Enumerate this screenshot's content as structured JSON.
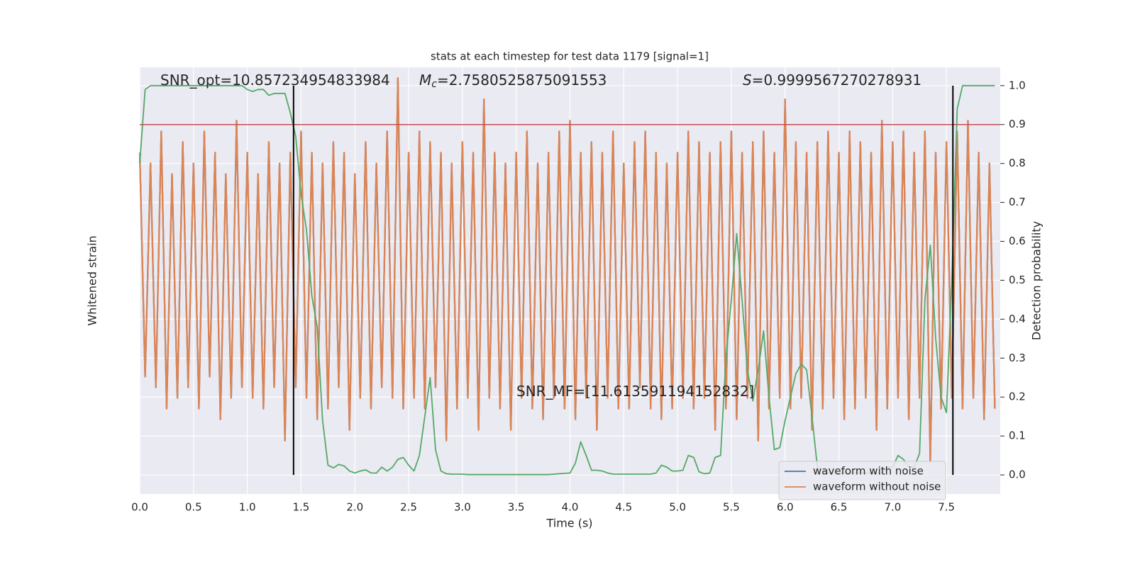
{
  "chart_data": {
    "type": "line",
    "title": "stats at each timestep for test data 1179 [signal=1]",
    "xlabel": "Time (s)",
    "ylabel": "Whitened strain",
    "y2label": "Detection probability",
    "x": [
      0,
      0.05,
      0.1,
      0.15,
      0.2,
      0.25,
      0.3,
      0.35,
      0.4,
      0.45,
      0.5,
      0.55,
      0.6,
      0.65,
      0.7,
      0.75,
      0.8,
      0.85,
      0.9,
      0.95,
      1,
      1.05,
      1.1,
      1.15,
      1.2,
      1.25,
      1.3,
      1.35,
      1.4,
      1.45,
      1.5,
      1.55,
      1.6,
      1.65,
      1.7,
      1.75,
      1.8,
      1.85,
      1.9,
      1.95,
      2,
      2.05,
      2.1,
      2.15,
      2.2,
      2.25,
      2.3,
      2.35,
      2.4,
      2.45,
      2.5,
      2.55,
      2.6,
      2.65,
      2.7,
      2.75,
      2.8,
      2.85,
      2.9,
      2.95,
      3,
      3.05,
      3.1,
      3.15,
      3.2,
      3.25,
      3.3,
      3.35,
      3.4,
      3.45,
      3.5,
      3.55,
      3.6,
      3.65,
      3.7,
      3.75,
      3.8,
      3.85,
      3.9,
      3.95,
      4,
      4.05,
      4.1,
      4.15,
      4.2,
      4.25,
      4.3,
      4.35,
      4.4,
      4.45,
      4.5,
      4.55,
      4.6,
      4.65,
      4.7,
      4.75,
      4.8,
      4.85,
      4.9,
      4.95,
      5,
      5.05,
      5.1,
      5.15,
      5.2,
      5.25,
      5.3,
      5.35,
      5.4,
      5.45,
      5.5,
      5.55,
      5.6,
      5.65,
      5.7,
      5.75,
      5.8,
      5.85,
      5.9,
      5.95,
      6,
      6.05,
      6.1,
      6.15,
      6.2,
      6.25,
      6.3,
      6.35,
      6.4,
      6.45,
      6.5,
      6.55,
      6.6,
      6.65,
      6.7,
      6.75,
      6.8,
      6.85,
      6.9,
      6.95,
      7,
      7.05,
      7.1,
      7.15,
      7.2,
      7.25,
      7.3,
      7.35,
      7.4,
      7.45,
      7.5,
      7.55,
      7.6,
      7.65,
      7.7,
      7.75,
      7.8,
      7.85,
      7.9,
      7.95
    ],
    "xlim": [
      0,
      8
    ],
    "xticks": [
      {
        "value": 0,
        "label": "0.0"
      },
      {
        "value": 0.5,
        "label": "0.5"
      },
      {
        "value": 1,
        "label": "1.0"
      },
      {
        "value": 1.5,
        "label": "1.5"
      },
      {
        "value": 2,
        "label": "2.0"
      },
      {
        "value": 2.5,
        "label": "2.5"
      },
      {
        "value": 3,
        "label": "3.0"
      },
      {
        "value": 3.5,
        "label": "3.5"
      },
      {
        "value": 4,
        "label": "4.0"
      },
      {
        "value": 4.5,
        "label": "4.5"
      },
      {
        "value": 5,
        "label": "5.0"
      },
      {
        "value": 5.5,
        "label": "5.5"
      },
      {
        "value": 6,
        "label": "6.0"
      },
      {
        "value": 6.5,
        "label": "6.5"
      },
      {
        "value": 7,
        "label": "7.0"
      },
      {
        "value": 7.5,
        "label": "7.5"
      }
    ],
    "ylim": [
      -1,
      1
    ],
    "y2lim": [
      -0.049,
      1.047
    ],
    "y2ticks": [
      {
        "value": 0,
        "label": "0.0"
      },
      {
        "value": 0.1,
        "label": "0.1"
      },
      {
        "value": 0.2,
        "label": "0.2"
      },
      {
        "value": 0.3,
        "label": "0.3"
      },
      {
        "value": 0.4,
        "label": "0.4"
      },
      {
        "value": 0.5,
        "label": "0.5"
      },
      {
        "value": 0.6,
        "label": "0.6"
      },
      {
        "value": 0.7,
        "label": "0.7"
      },
      {
        "value": 0.8,
        "label": "0.8"
      },
      {
        "value": 0.9,
        "label": "0.9"
      },
      {
        "value": 1,
        "label": "1.0"
      }
    ],
    "grid": true,
    "legend": "lower right",
    "series": [
      {
        "name": "waveform with noise",
        "color": "#4c72b0",
        "values": [
          0.6,
          -0.45,
          0.55,
          -0.5,
          0.7,
          -0.6,
          0.5,
          -0.55,
          0.65,
          -0.5,
          0.55,
          -0.6,
          0.7,
          -0.45,
          0.6,
          -0.65,
          0.5,
          -0.55,
          0.75,
          -0.5,
          0.6,
          -0.55,
          0.5,
          -0.6,
          0.65,
          -0.5,
          0.55,
          -0.75,
          0.6,
          -0.5,
          0.7,
          -0.55,
          0.6,
          -0.65,
          0.55,
          -0.6,
          0.65,
          -0.5,
          0.6,
          -0.7,
          0.5,
          -0.55,
          0.65,
          -0.6,
          0.55,
          -0.5,
          0.7,
          -0.55,
          0.95,
          -0.6,
          0.6,
          -0.55,
          0.7,
          -0.6,
          0.65,
          -0.5,
          0.6,
          -0.75,
          0.55,
          -0.6,
          0.65,
          -0.55,
          0.6,
          -0.7,
          0.85,
          -0.55,
          0.6,
          -0.6,
          0.55,
          -0.7,
          0.6,
          -0.55,
          0.7,
          -0.6,
          0.55,
          -0.65,
          0.6,
          -0.55,
          0.7,
          -0.6,
          0.75,
          -0.65,
          0.6,
          -0.55,
          0.65,
          -0.7,
          0.6,
          -0.55,
          0.7,
          -0.6,
          0.55,
          -0.6,
          0.65,
          -0.5,
          0.7,
          -0.6,
          0.6,
          -0.65,
          0.55,
          -0.6,
          0.6,
          -0.55,
          0.7,
          -0.6,
          0.65,
          -0.55,
          0.6,
          -0.7,
          0.65,
          -0.6,
          0.7,
          -0.65,
          0.6,
          -0.55,
          0.65,
          -0.75,
          0.7,
          -0.6,
          0.6,
          -0.55,
          0.85,
          -0.6,
          0.65,
          -0.55,
          0.6,
          -0.7,
          0.65,
          -0.6,
          0.7,
          -0.55,
          0.6,
          -0.65,
          0.7,
          -0.6,
          0.65,
          -0.55,
          0.6,
          -0.7,
          0.75,
          -0.6,
          0.65,
          -0.55,
          0.7,
          -0.65,
          0.6,
          -0.55,
          0.7,
          -0.85,
          0.6,
          -0.6,
          0.65,
          -0.55,
          0.7,
          -0.6,
          0.75,
          -0.55,
          0.6,
          -0.65,
          0.55,
          -0.6
        ]
      },
      {
        "name": "waveform without noise",
        "color": "#dd8452",
        "values": [
          0.6,
          -0.45,
          0.55,
          -0.5,
          0.7,
          -0.6,
          0.5,
          -0.55,
          0.65,
          -0.5,
          0.55,
          -0.6,
          0.7,
          -0.45,
          0.6,
          -0.65,
          0.5,
          -0.55,
          0.75,
          -0.5,
          0.6,
          -0.55,
          0.5,
          -0.6,
          0.65,
          -0.5,
          0.55,
          -0.75,
          0.6,
          -0.5,
          0.7,
          -0.55,
          0.6,
          -0.65,
          0.55,
          -0.6,
          0.65,
          -0.5,
          0.6,
          -0.7,
          0.5,
          -0.55,
          0.65,
          -0.6,
          0.55,
          -0.5,
          0.7,
          -0.55,
          0.95,
          -0.6,
          0.6,
          -0.55,
          0.7,
          -0.6,
          0.65,
          -0.5,
          0.6,
          -0.75,
          0.55,
          -0.6,
          0.65,
          -0.55,
          0.6,
          -0.7,
          0.85,
          -0.55,
          0.6,
          -0.6,
          0.55,
          -0.7,
          0.6,
          -0.55,
          0.7,
          -0.6,
          0.55,
          -0.65,
          0.6,
          -0.55,
          0.7,
          -0.6,
          0.75,
          -0.65,
          0.6,
          -0.55,
          0.65,
          -0.7,
          0.6,
          -0.55,
          0.7,
          -0.6,
          0.55,
          -0.6,
          0.65,
          -0.5,
          0.7,
          -0.6,
          0.6,
          -0.65,
          0.55,
          -0.6,
          0.6,
          -0.55,
          0.7,
          -0.6,
          0.65,
          -0.55,
          0.6,
          -0.7,
          0.65,
          -0.6,
          0.7,
          -0.65,
          0.6,
          -0.55,
          0.65,
          -0.75,
          0.7,
          -0.6,
          0.6,
          -0.55,
          0.85,
          -0.6,
          0.65,
          -0.55,
          0.6,
          -0.7,
          0.65,
          -0.6,
          0.7,
          -0.55,
          0.6,
          -0.65,
          0.7,
          -0.6,
          0.65,
          -0.55,
          0.6,
          -0.7,
          0.75,
          -0.6,
          0.65,
          -0.55,
          0.7,
          -0.65,
          0.6,
          -0.55,
          0.7,
          -0.85,
          0.6,
          -0.6,
          0.65,
          -0.55,
          0.7,
          -0.6,
          0.75,
          -0.55,
          0.6,
          -0.65,
          0.55,
          -0.6
        ]
      },
      {
        "color": "#55a868",
        "axis": "y2",
        "values": [
          0.8,
          0.99,
          1,
          1,
          1,
          1,
          1,
          1,
          1,
          1,
          1,
          1,
          1,
          1,
          1,
          1,
          1,
          1,
          1,
          1,
          0.99,
          0.985,
          0.99,
          0.99,
          0.975,
          0.98,
          0.98,
          0.98,
          0.93,
          0.87,
          0.72,
          0.63,
          0.46,
          0.38,
          0.14,
          0.025,
          0.018,
          0.027,
          0.023,
          0.01,
          0.005,
          0.01,
          0.013,
          0.005,
          0.005,
          0.02,
          0.01,
          0.02,
          0.04,
          0.045,
          0.025,
          0.01,
          0.05,
          0.15,
          0.25,
          0.065,
          0.01,
          0.003,
          0.002,
          0.002,
          0.002,
          0.001,
          0.001,
          0.001,
          0.001,
          0.001,
          0.001,
          0.001,
          0.001,
          0.001,
          0.001,
          0.001,
          0.001,
          0.001,
          0.001,
          0.001,
          0.001,
          0.002,
          0.003,
          0.004,
          0.005,
          0.03,
          0.085,
          0.05,
          0.012,
          0.012,
          0.01,
          0.005,
          0.002,
          0.002,
          0.002,
          0.002,
          0.002,
          0.002,
          0.002,
          0.002,
          0.005,
          0.025,
          0.02,
          0.01,
          0.01,
          0.012,
          0.05,
          0.045,
          0.008,
          0.003,
          0.005,
          0.045,
          0.05,
          0.3,
          0.45,
          0.62,
          0.45,
          0.27,
          0.19,
          0.27,
          0.37,
          0.2,
          0.065,
          0.07,
          0.14,
          0.2,
          0.26,
          0.285,
          0.27,
          0.15,
          0.02,
          0.01,
          0.005,
          0.005,
          0.005,
          0.005,
          0.005,
          0.005,
          0.005,
          0.005,
          0.005,
          0.005,
          0.005,
          0.02,
          0.02,
          0.05,
          0.04,
          0.02,
          0.02,
          0.055,
          0.45,
          0.59,
          0.35,
          0.2,
          0.16,
          0.5,
          0.94,
          1,
          1,
          1,
          1,
          1,
          1,
          1
        ]
      }
    ],
    "threshold": {
      "value": 0.9,
      "color": "#c44e52",
      "axis": "y2"
    },
    "vlines": [
      1.43,
      7.56
    ],
    "annotations": [
      {
        "text": "SNR_opt=10.857234954833984"
      },
      {
        "symbol": "M",
        "subscript": "c",
        "text": "=2.7580525875091553"
      },
      {
        "symbol": "S",
        "text": "=0.9999567270278931"
      },
      {
        "text": "SNR_MF=[11.613591194152832]"
      }
    ]
  }
}
